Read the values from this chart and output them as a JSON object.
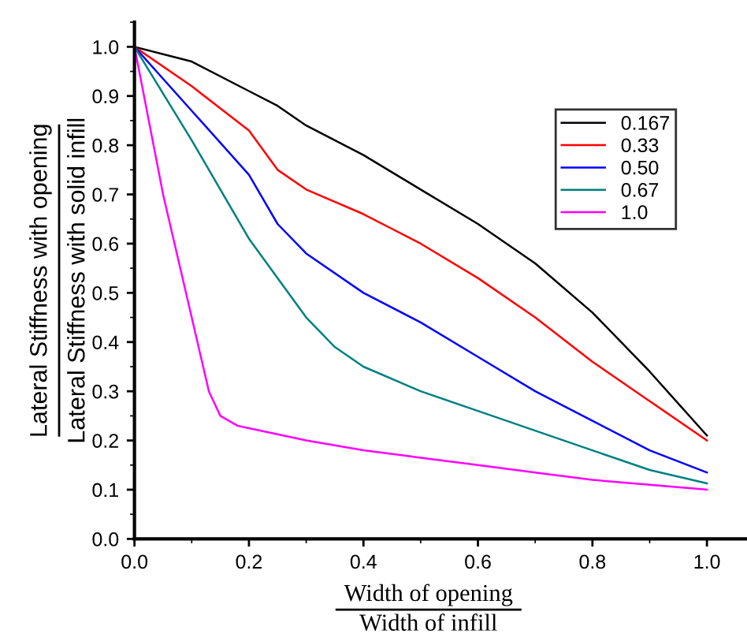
{
  "chart_data": {
    "type": "line",
    "xlabel": "Width of opening\nWidth of infill",
    "ylabel": "Lateral Stiffness with opening\nLateral Stiffness with solid infill",
    "xlim": [
      0,
      1.07
    ],
    "ylim": [
      0,
      1.05
    ],
    "xticks": [
      {
        "value": 0,
        "label": "0.0"
      },
      0.2,
      0.4,
      0.6,
      0.8,
      {
        "value": 1,
        "label": "1.0"
      }
    ],
    "yticks": [
      {
        "value": 0,
        "label": "0.0"
      },
      0.1,
      0.2,
      0.3,
      0.4,
      0.5,
      0.6,
      0.7,
      0.8,
      0.9,
      {
        "value": 1,
        "label": "1.0"
      }
    ],
    "legend": "top right",
    "grid": false,
    "marker": "none",
    "line_style": "solid",
    "series": [
      {
        "name": "0.167",
        "color": "#000000",
        "x": [
          0,
          0.1,
          0.2,
          0.25,
          0.3,
          0.4,
          0.5,
          0.6,
          0.7,
          0.8,
          0.9,
          1.0
        ],
        "values": [
          1.0,
          0.97,
          0.91,
          0.88,
          0.84,
          0.78,
          0.71,
          0.64,
          0.56,
          0.46,
          0.34,
          0.21
        ]
      },
      {
        "name": "0.33",
        "color": "#ff0000",
        "x": [
          0,
          0.1,
          0.2,
          0.25,
          0.3,
          0.4,
          0.45,
          0.5,
          0.6,
          0.7,
          0.8,
          0.9,
          1.0
        ],
        "values": [
          1.0,
          0.92,
          0.83,
          0.75,
          0.71,
          0.66,
          0.63,
          0.6,
          0.53,
          0.45,
          0.36,
          0.28,
          0.2
        ]
      },
      {
        "name": "0.50",
        "color": "#0000ff",
        "x": [
          0,
          0.1,
          0.2,
          0.25,
          0.3,
          0.4,
          0.5,
          0.6,
          0.7,
          0.8,
          0.9,
          1.0
        ],
        "values": [
          1.0,
          0.87,
          0.74,
          0.64,
          0.58,
          0.5,
          0.44,
          0.37,
          0.3,
          0.24,
          0.18,
          0.135
        ]
      },
      {
        "name": "0.67",
        "color": "#008080",
        "x": [
          0,
          0.1,
          0.2,
          0.3,
          0.35,
          0.4,
          0.5,
          0.6,
          0.7,
          0.8,
          0.9,
          1.0
        ],
        "values": [
          1.0,
          0.81,
          0.61,
          0.45,
          0.39,
          0.35,
          0.3,
          0.26,
          0.22,
          0.18,
          0.14,
          0.113
        ]
      },
      {
        "name": "1.0",
        "color": "#ff00ff",
        "x": [
          0,
          0.05,
          0.1,
          0.13,
          0.15,
          0.18,
          0.2,
          0.3,
          0.4,
          0.5,
          0.6,
          0.7,
          0.8,
          0.9,
          1.0
        ],
        "values": [
          1.0,
          0.7,
          0.45,
          0.3,
          0.25,
          0.23,
          0.225,
          0.2,
          0.18,
          0.165,
          0.15,
          0.135,
          0.12,
          0.11,
          0.1
        ]
      }
    ]
  }
}
